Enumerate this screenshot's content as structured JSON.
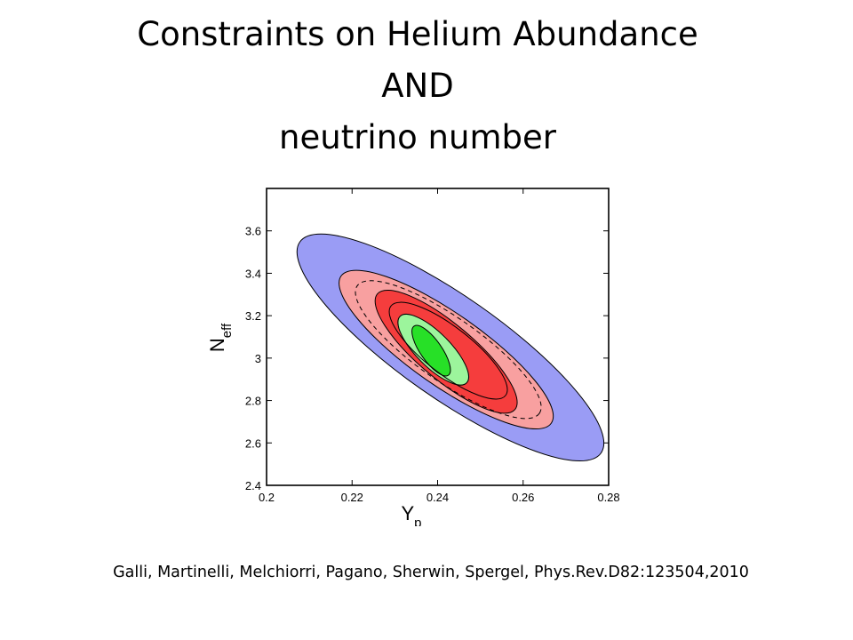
{
  "slide": {
    "title_lines": [
      "Constraints on Helium Abundance",
      "AND",
      "neutrino number"
    ],
    "citation": "Galli, Martinelli, Melchiorri, Pagano, Sherwin, Spergel,  Phys.Rev.D82:123504,2010"
  },
  "chart_data": {
    "type": "contour",
    "title": "",
    "xlabel": "Y",
    "xlabel_subscript": "p",
    "ylabel": "N",
    "ylabel_subscript": "eff",
    "xlim": [
      0.2,
      0.28
    ],
    "ylim": [
      2.4,
      3.8
    ],
    "x_ticks": [
      "0.2",
      "0.22",
      "0.24",
      "0.26",
      "0.28"
    ],
    "y_ticks": [
      "2.4",
      "2.6",
      "2.8",
      "3",
      "3.2",
      "3.4",
      "3.6"
    ],
    "grid": false,
    "regions": [
      {
        "level": "outer",
        "color": "#9a9cf5",
        "center": [
          0.243,
          3.05
        ],
        "rx": 0.043,
        "ry": 0.24,
        "angle": -55
      },
      {
        "level": "outer",
        "color": "#f8a0a0",
        "center": [
          0.242,
          3.04
        ],
        "rx": 0.03,
        "ry": 0.17,
        "angle": -55
      },
      {
        "level": "inner",
        "color": "#f53d3d",
        "center": [
          0.242,
          3.03
        ],
        "rx": 0.021,
        "ry": 0.13,
        "angle": -50
      },
      {
        "level": "outer",
        "color": "#9cf59c",
        "center": [
          0.239,
          3.04
        ],
        "rx": 0.011,
        "ry": 0.08,
        "angle": -45
      },
      {
        "level": "inner",
        "color": "#27e027",
        "center": [
          0.2385,
          3.035
        ],
        "rx": 0.007,
        "ry": 0.05,
        "angle": -35
      }
    ],
    "dashed_contours": [
      {
        "center": [
          0.2425,
          3.04
        ],
        "rx": 0.026,
        "ry": 0.15,
        "angle": -55
      }
    ],
    "solid_contours": [
      {
        "center": [
          0.2425,
          3.035
        ],
        "rx": 0.017,
        "ry": 0.11,
        "angle": -52
      }
    ]
  }
}
